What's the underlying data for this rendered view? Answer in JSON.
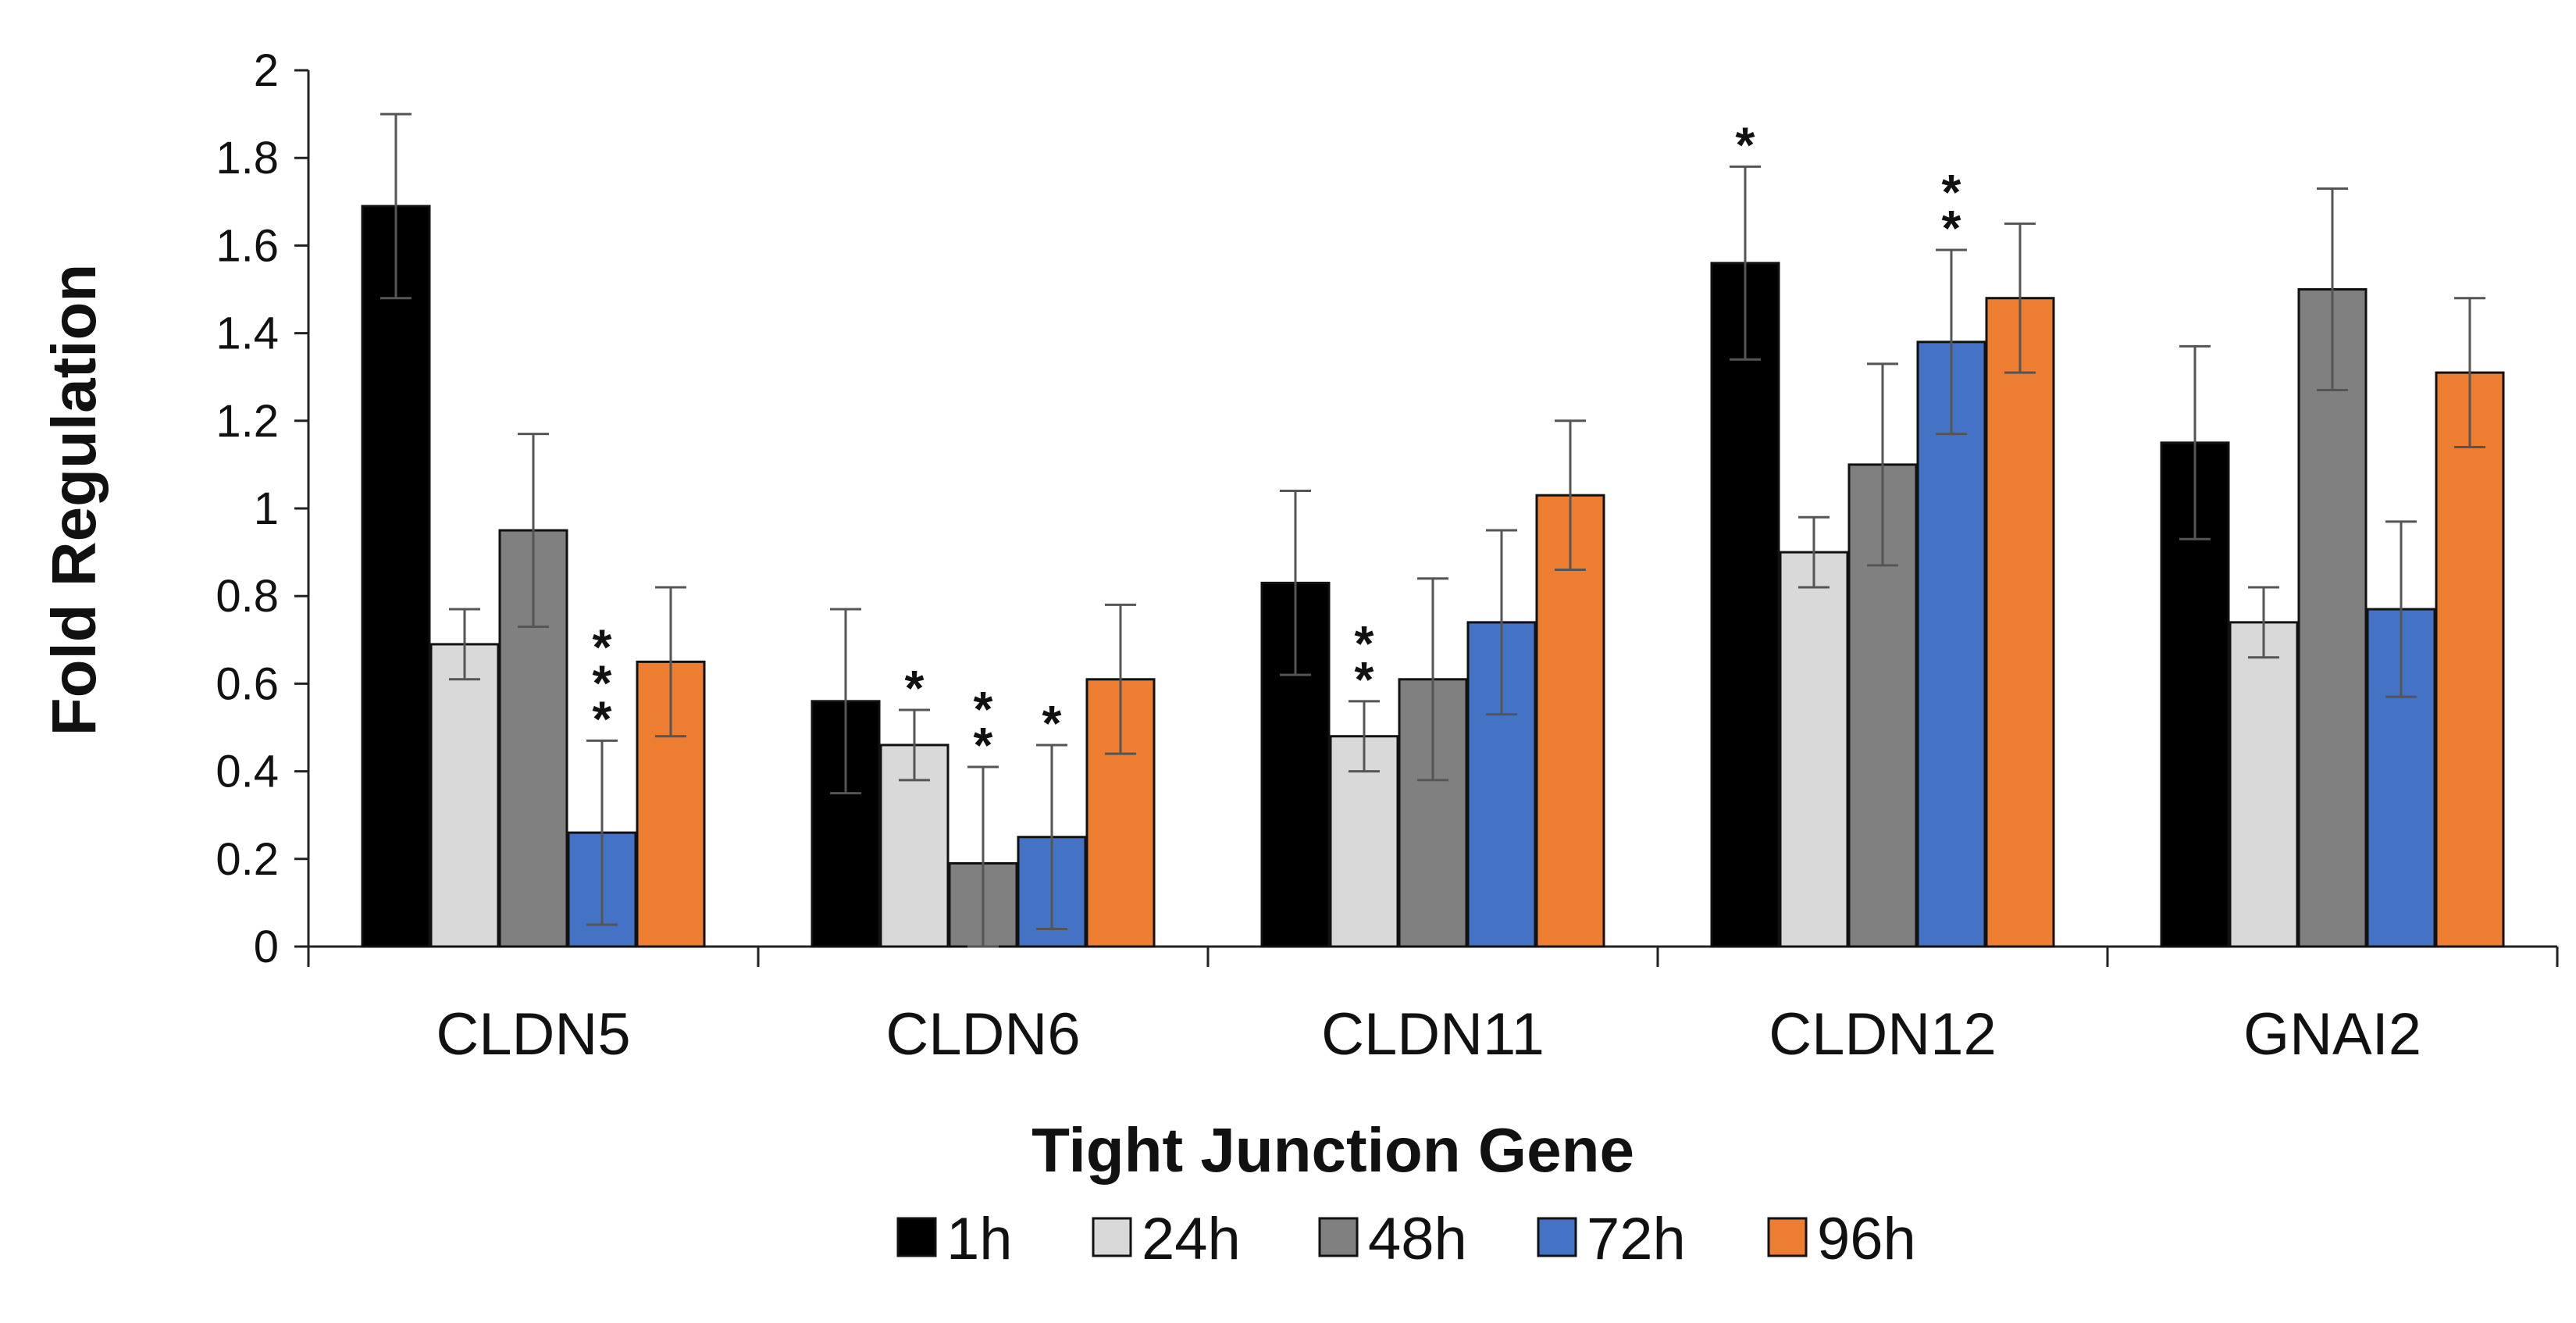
{
  "chart_data": {
    "type": "bar",
    "title": "",
    "xlabel": "Tight Junction Gene",
    "ylabel": "Fold Regulation",
    "ylim": [
      0,
      2
    ],
    "yticks": [
      "0",
      "0.2",
      "0.4",
      "0.6",
      "0.8",
      "1",
      "1.2",
      "1.4",
      "1.6",
      "1.8",
      "2"
    ],
    "grid": false,
    "legend_position": "bottom",
    "categories": [
      "CLDN5",
      "CLDN6",
      "CLDN11",
      "CLDN12",
      "GNAI2"
    ],
    "series": [
      {
        "name": "1h",
        "color": "#000000",
        "values": [
          1.69,
          0.56,
          0.83,
          1.56,
          1.15
        ],
        "errors": [
          0.21,
          0.21,
          0.21,
          0.22,
          0.22
        ],
        "significance": [
          "",
          "",
          "",
          "*",
          ""
        ]
      },
      {
        "name": "24h",
        "color": "#d9d9d9",
        "values": [
          0.69,
          0.46,
          0.48,
          0.9,
          0.74
        ],
        "errors": [
          0.08,
          0.08,
          0.08,
          0.08,
          0.08
        ],
        "significance": [
          "",
          "*",
          "**",
          "",
          ""
        ]
      },
      {
        "name": "48h",
        "color": "#808080",
        "values": [
          0.95,
          0.19,
          0.61,
          1.1,
          1.5
        ],
        "errors": [
          0.22,
          0.22,
          0.23,
          0.23,
          0.23
        ],
        "significance": [
          "",
          "**",
          "",
          "",
          ""
        ]
      },
      {
        "name": "72h",
        "color": "#4472c4",
        "values": [
          0.26,
          0.25,
          0.74,
          1.38,
          0.77
        ],
        "errors": [
          0.21,
          0.21,
          0.21,
          0.21,
          0.2
        ],
        "significance": [
          "***",
          "*",
          "",
          "**",
          ""
        ]
      },
      {
        "name": "96h",
        "color": "#ed7d31",
        "values": [
          0.65,
          0.61,
          1.03,
          1.48,
          1.31
        ],
        "errors": [
          0.17,
          0.17,
          0.17,
          0.17,
          0.17
        ],
        "significance": [
          "",
          "",
          "",
          "",
          ""
        ]
      }
    ]
  }
}
